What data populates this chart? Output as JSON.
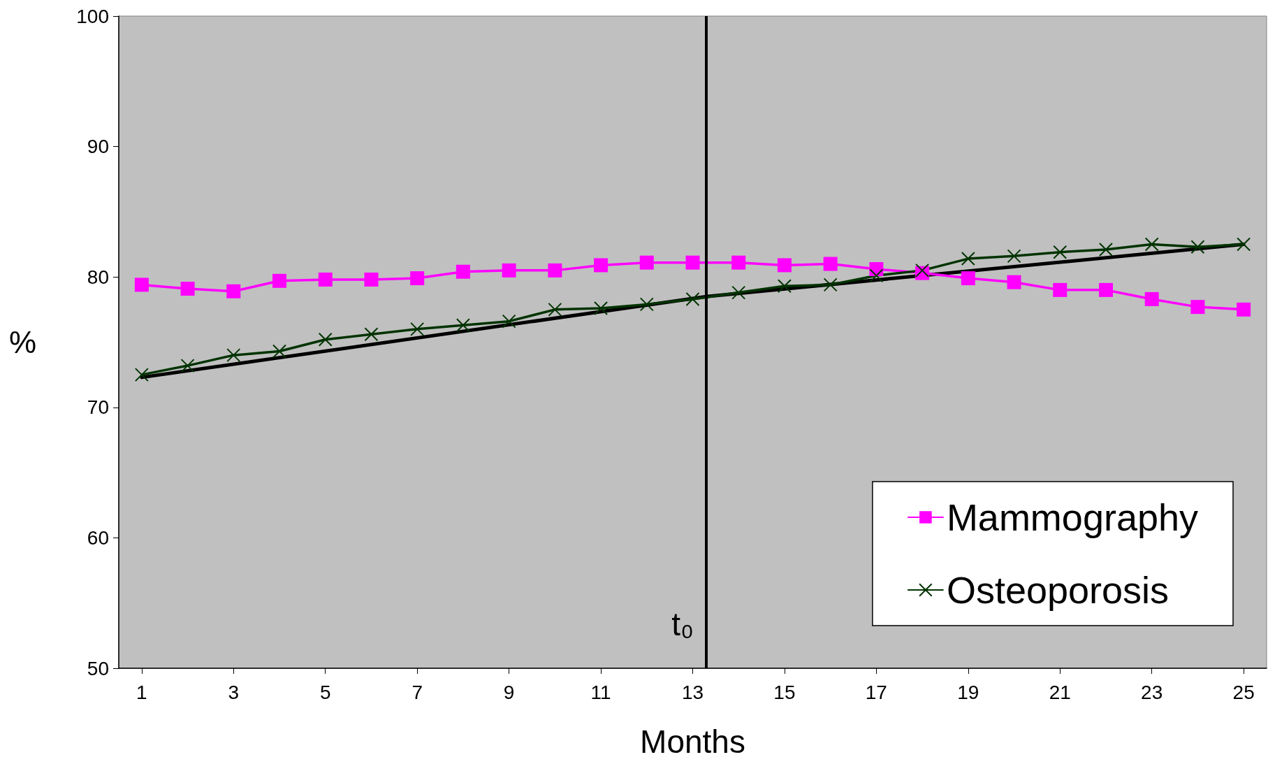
{
  "chart_data": {
    "type": "line",
    "xlabel": "Months",
    "ylabel": "%",
    "x": [
      1,
      2,
      3,
      4,
      5,
      6,
      7,
      8,
      9,
      10,
      11,
      12,
      13,
      14,
      15,
      16,
      17,
      18,
      19,
      20,
      21,
      22,
      23,
      24,
      25
    ],
    "xlim": [
      0.5,
      25.5
    ],
    "xticks": [
      1,
      3,
      5,
      7,
      9,
      11,
      13,
      15,
      17,
      19,
      21,
      23,
      25
    ],
    "ylim": [
      50,
      100
    ],
    "yticks": [
      50,
      60,
      70,
      80,
      90,
      100
    ],
    "grid": false,
    "legend": "bottom right",
    "line_style": "solid",
    "series": [
      {
        "name": "Mammography",
        "color": "#ff00ff",
        "marker": "square",
        "values": [
          79.4,
          79.1,
          78.9,
          79.7,
          79.8,
          79.8,
          79.9,
          80.4,
          80.5,
          80.5,
          80.9,
          81.1,
          81.1,
          81.1,
          80.9,
          81.0,
          80.6,
          80.3,
          79.9,
          79.6,
          79.0,
          79.0,
          78.3,
          77.7,
          77.5
        ]
      },
      {
        "name": "Osteoporosis",
        "color": "#003300",
        "marker": "cross",
        "values": [
          72.5,
          73.2,
          74.0,
          74.3,
          75.2,
          75.6,
          76.0,
          76.3,
          76.6,
          77.5,
          77.6,
          77.9,
          78.3,
          78.8,
          79.3,
          79.4,
          80.1,
          80.5,
          81.4,
          81.6,
          81.9,
          82.1,
          82.5,
          82.3,
          82.5
        ]
      },
      {
        "type": "line",
        "color": "#000000",
        "marker": "none",
        "x": [
          1,
          13.3,
          25
        ],
        "values": [
          72.3,
          78.5,
          82.5
        ]
      }
    ],
    "ref_lines": [
      {
        "axis": "x",
        "value": 13.3,
        "label": "t₀",
        "color": "#000000"
      }
    ]
  }
}
